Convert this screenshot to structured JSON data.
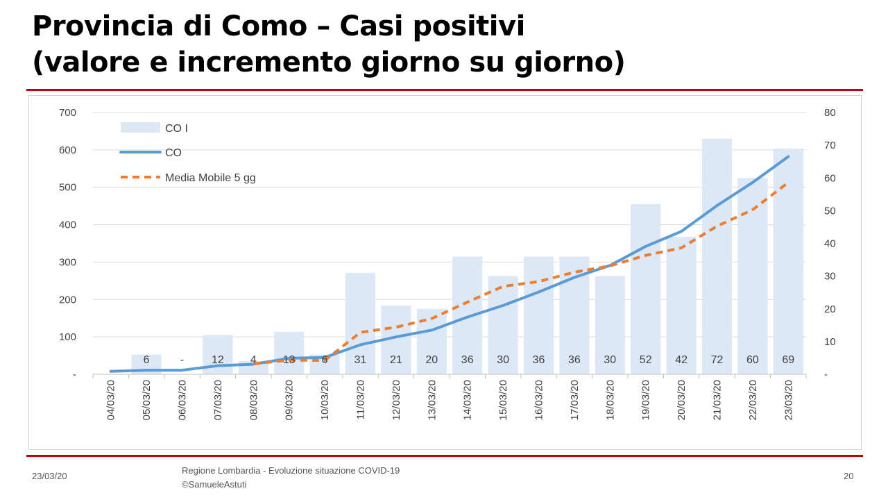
{
  "slide": {
    "title_line1": "Provincia di Como – Casi positivi",
    "title_line2": "(valore e incremento giorno su giorno)",
    "footer_date": "23/03/20",
    "footer_source_1": "Regione Lombardia - Evoluzione situazione COVID-19",
    "footer_source_2": "©SamueleAstuti",
    "page_number": "20"
  },
  "colors": {
    "bar": "#dce8f5",
    "line": "#5b9bd5",
    "moving_avg": "#ed7d31",
    "grid": "#d9d9d9",
    "text": "#404040",
    "rule": "#c00000"
  },
  "chart_data": {
    "type": "bar+line",
    "categories": [
      "04/03/20",
      "05/03/20",
      "06/03/20",
      "07/03/20",
      "08/03/20",
      "09/03/20",
      "10/03/20",
      "11/03/20",
      "12/03/20",
      "13/03/20",
      "14/03/20",
      "15/03/20",
      "16/03/20",
      "17/03/20",
      "18/03/20",
      "19/03/20",
      "20/03/20",
      "21/03/20",
      "22/03/20",
      "23/03/20"
    ],
    "series": [
      {
        "name": "CO I",
        "kind": "bar",
        "axis": "right",
        "values": [
          null,
          6,
          0,
          12,
          4,
          13,
          6,
          31,
          21,
          20,
          36,
          30,
          36,
          36,
          30,
          52,
          42,
          72,
          60,
          69
        ],
        "labels": [
          "",
          "6",
          "-",
          "12",
          "4",
          "13",
          "6",
          "31",
          "21",
          "20",
          "36",
          "30",
          "36",
          "36",
          "30",
          "52",
          "42",
          "72",
          "60",
          "69"
        ]
      },
      {
        "name": "CO",
        "kind": "line",
        "axis": "left",
        "values": [
          8,
          11,
          11,
          23,
          27,
          43,
          45,
          79,
          100,
          118,
          153,
          184,
          220,
          259,
          291,
          342,
          382,
          451,
          513,
          582
        ]
      },
      {
        "name": "Media Mobile 5 gg",
        "kind": "dashed-line",
        "axis": "left",
        "values": [
          null,
          null,
          null,
          null,
          28,
          38,
          37,
          112,
          126,
          149,
          193,
          235,
          248,
          273,
          290,
          318,
          338,
          396,
          440,
          513
        ]
      }
    ],
    "left_axis": {
      "ylim": [
        0,
        700
      ],
      "ticks": [
        "-",
        "100",
        "200",
        "300",
        "400",
        "500",
        "600",
        "700"
      ]
    },
    "right_axis": {
      "ylim": [
        0,
        80
      ],
      "ticks": [
        "-",
        "10",
        "20",
        "30",
        "40",
        "50",
        "60",
        "70",
        "80"
      ]
    },
    "grid": true,
    "legend": "top-left"
  }
}
